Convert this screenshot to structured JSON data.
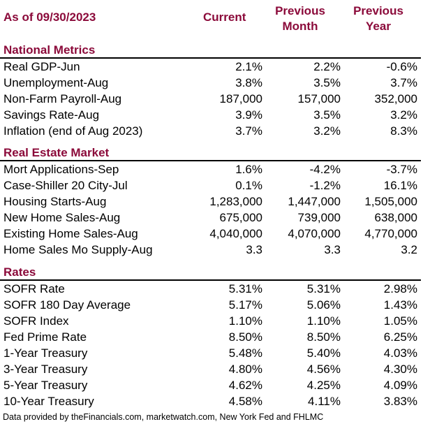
{
  "header": {
    "as_of": "As of 09/30/2023",
    "col_current": "Current",
    "col_prev_month_1": "Previous",
    "col_prev_month_2": "Month",
    "col_prev_year_1": "Previous",
    "col_prev_year_2": "Year"
  },
  "sections": [
    {
      "title": "National Metrics",
      "rows": [
        {
          "label": "Real GDP-Jun",
          "current": "2.1%",
          "prev_month": "2.2%",
          "prev_year": "-0.6%"
        },
        {
          "label": "Unemployment-Aug",
          "current": "3.8%",
          "prev_month": "3.5%",
          "prev_year": "3.7%"
        },
        {
          "label": "Non-Farm Payroll-Aug",
          "current": "187,000",
          "prev_month": "157,000",
          "prev_year": "352,000"
        },
        {
          "label": "Savings Rate-Aug",
          "current": "3.9%",
          "prev_month": "3.5%",
          "prev_year": "3.2%"
        },
        {
          "label": "Inflation (end of Aug 2023)",
          "current": "3.7%",
          "prev_month": "3.2%",
          "prev_year": "8.3%"
        }
      ]
    },
    {
      "title": "Real Estate Market",
      "rows": [
        {
          "label": "Mort Applications-Sep",
          "current": "1.6%",
          "prev_month": "-4.2%",
          "prev_year": "-3.7%"
        },
        {
          "label": "Case-Shiller 20 City-Jul",
          "current": "0.1%",
          "prev_month": "-1.2%",
          "prev_year": "16.1%"
        },
        {
          "label": "Housing Starts-Aug",
          "current": "1,283,000",
          "prev_month": "1,447,000",
          "prev_year": "1,505,000"
        },
        {
          "label": "New Home Sales-Aug",
          "current": "675,000",
          "prev_month": "739,000",
          "prev_year": "638,000"
        },
        {
          "label": "Existing Home Sales-Aug",
          "current": "4,040,000",
          "prev_month": "4,070,000",
          "prev_year": "4,770,000"
        },
        {
          "label": "Home Sales Mo Supply-Aug",
          "current": "3.3",
          "prev_month": "3.3",
          "prev_year": "3.2"
        }
      ]
    },
    {
      "title": "Rates",
      "rows": [
        {
          "label": "SOFR Rate",
          "current": "5.31%",
          "prev_month": "5.31%",
          "prev_year": "2.98%"
        },
        {
          "label": "SOFR 180 Day Average",
          "current": "5.17%",
          "prev_month": "5.06%",
          "prev_year": "1.43%"
        },
        {
          "label": "SOFR Index",
          "current": "1.10%",
          "prev_month": "1.10%",
          "prev_year": "1.05%"
        },
        {
          "label": "Fed Prime Rate",
          "current": "8.50%",
          "prev_month": "8.50%",
          "prev_year": "6.25%"
        },
        {
          "label": "1-Year Treasury",
          "current": "5.48%",
          "prev_month": "5.40%",
          "prev_year": "4.03%"
        },
        {
          "label": "3-Year Treasury",
          "current": "4.80%",
          "prev_month": "4.56%",
          "prev_year": "4.30%"
        },
        {
          "label": "5-Year Treasury",
          "current": "4.62%",
          "prev_month": "4.25%",
          "prev_year": "4.09%"
        },
        {
          "label": "10-Year Treasury",
          "current": "4.58%",
          "prev_month": "4.11%",
          "prev_year": "3.83%"
        }
      ]
    }
  ],
  "footer": "Data provided by theFinancials.com, marketwatch.com, New York Fed and FHLMC",
  "colors": {
    "accent": "#8b0a3a",
    "text": "#000000",
    "rule": "#000000"
  }
}
